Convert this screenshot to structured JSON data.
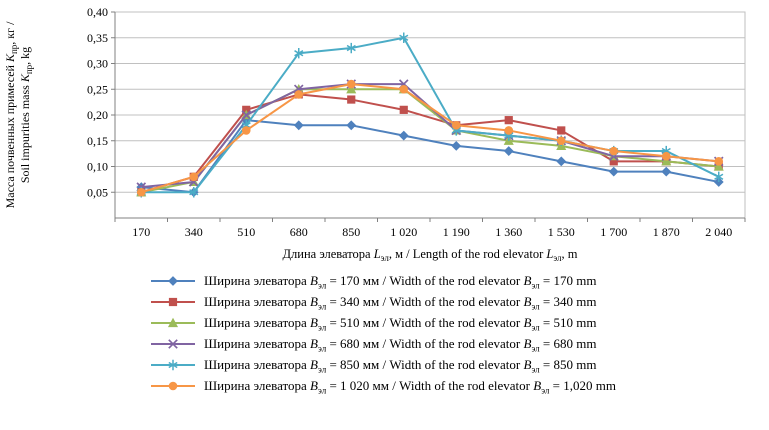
{
  "chart_data": {
    "type": "line",
    "title": "",
    "x_categories": [
      "170",
      "340",
      "510",
      "680",
      "850",
      "1 020",
      "1 190",
      "1 360",
      "1 530",
      "1 700",
      "1 870",
      "2 040"
    ],
    "xlabel": "Длина элеватора Lэл, м / Length of the rod elevator Lэл, m",
    "ylabel_line1": "Масса почвенных примесей Kпр, кг /",
    "ylabel_line2": "Soil impurities mass Kпр, kg",
    "ylim": [
      0,
      0.4
    ],
    "ytick_step": 0.05,
    "ytick_labels": [
      "0,05",
      "0,10",
      "0,15",
      "0,20",
      "0,25",
      "0,30",
      "0,35",
      "0,40"
    ],
    "grid": true,
    "legend_position": "bottom",
    "colors": {
      "axis": "#808080",
      "gridline": "#c0c0c0",
      "plot_border": "#bfbfbf",
      "text": "#000000"
    },
    "series": [
      {
        "name": "Ширина элеватора Bэл = 170 мм / Width of the rod elevator Bэл = 170 mm",
        "marker": "diamond",
        "color": "#4F81BD",
        "values": [
          0.06,
          0.05,
          0.19,
          0.18,
          0.18,
          0.16,
          0.14,
          0.13,
          0.11,
          0.09,
          0.09,
          0.07
        ]
      },
      {
        "name": "Ширина элеватора Bэл = 340 мм / Width of the rod elevator Bэл = 340 mm",
        "marker": "square",
        "color": "#C0504D",
        "values": [
          0.05,
          0.08,
          0.21,
          0.24,
          0.23,
          0.21,
          0.18,
          0.19,
          0.17,
          0.11,
          0.11,
          0.1
        ]
      },
      {
        "name": "Ширина элеватора Bэл = 510 мм / Width of the rod elevator Bэл = 510 mm",
        "marker": "triangle",
        "color": "#9BBB59",
        "values": [
          0.05,
          0.07,
          0.2,
          0.25,
          0.25,
          0.25,
          0.17,
          0.15,
          0.14,
          0.12,
          0.11,
          0.1
        ]
      },
      {
        "name": "Ширина элеватора Bэл = 680 мм / Width of the rod elevator Bэл = 680 mm",
        "marker": "x",
        "color": "#8064A2",
        "values": [
          0.06,
          0.07,
          0.2,
          0.25,
          0.26,
          0.26,
          0.17,
          0.16,
          0.15,
          0.12,
          0.12,
          0.11
        ]
      },
      {
        "name": "Ширина элеватора Bэл = 850 мм / Width of the rod elevator Bэл = 850 mm",
        "marker": "asterisk",
        "color": "#4BACC6",
        "values": [
          0.05,
          0.05,
          0.18,
          0.32,
          0.33,
          0.35,
          0.17,
          0.16,
          0.15,
          0.13,
          0.13,
          0.08
        ]
      },
      {
        "name": "Ширина элеватора Bэл = 1 020 мм / Width of the rod elevator Bэл = 1,020 mm",
        "marker": "circle",
        "color": "#F79646",
        "values": [
          0.05,
          0.08,
          0.17,
          0.24,
          0.26,
          0.25,
          0.18,
          0.17,
          0.15,
          0.13,
          0.12,
          0.11
        ]
      }
    ]
  }
}
